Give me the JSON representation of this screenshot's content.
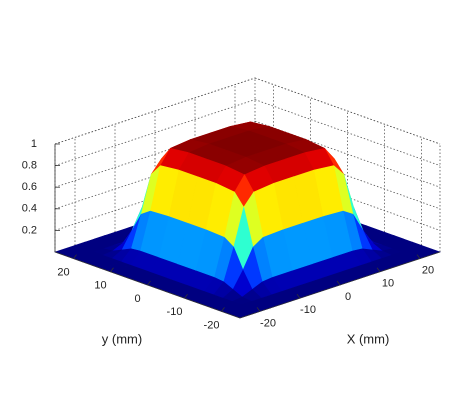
{
  "chart_data": {
    "type": "surface",
    "colormap": "jet",
    "xlabel": "X (mm)",
    "ylabel": "y (mm)",
    "x": [
      -25,
      -20,
      -17.5,
      -15,
      -12.5,
      -10,
      -5,
      0,
      5,
      10,
      12.5,
      15,
      17.5,
      20,
      25
    ],
    "y": [
      -25,
      -20,
      -17.5,
      -15,
      -12.5,
      -10,
      -5,
      0,
      5,
      10,
      12.5,
      15,
      17.5,
      20,
      25
    ],
    "z": [
      [
        0,
        0,
        0,
        0,
        0,
        0,
        0,
        0,
        0,
        0,
        0,
        0,
        0,
        0,
        0
      ],
      [
        0,
        0,
        0,
        0,
        0,
        0,
        0,
        0,
        0,
        0,
        0,
        0,
        0,
        0,
        0
      ],
      [
        0,
        0,
        0.01,
        0.05,
        0.09,
        0.1,
        0.1,
        0.1,
        0.1,
        0.1,
        0.09,
        0.05,
        0.01,
        0,
        0
      ],
      [
        0,
        0,
        0.05,
        0.2,
        0.38,
        0.44,
        0.45,
        0.45,
        0.45,
        0.44,
        0.38,
        0.2,
        0.05,
        0,
        0
      ],
      [
        0,
        0,
        0.09,
        0.38,
        0.72,
        0.83,
        0.85,
        0.85,
        0.85,
        0.83,
        0.72,
        0.38,
        0.09,
        0,
        0
      ],
      [
        0,
        0,
        0.1,
        0.44,
        0.83,
        0.96,
        0.98,
        0.98,
        0.98,
        0.96,
        0.83,
        0.44,
        0.1,
        0,
        0
      ],
      [
        0,
        0,
        0.1,
        0.45,
        0.85,
        0.98,
        1,
        1,
        1,
        0.98,
        0.85,
        0.45,
        0.1,
        0,
        0
      ],
      [
        0,
        0,
        0.1,
        0.45,
        0.85,
        0.98,
        1,
        1,
        1,
        0.98,
        0.85,
        0.45,
        0.1,
        0,
        0
      ],
      [
        0,
        0,
        0.1,
        0.45,
        0.85,
        0.98,
        1,
        1,
        1,
        0.98,
        0.85,
        0.45,
        0.1,
        0,
        0
      ],
      [
        0,
        0,
        0.1,
        0.44,
        0.83,
        0.96,
        0.98,
        0.98,
        0.98,
        0.96,
        0.83,
        0.44,
        0.1,
        0,
        0
      ],
      [
        0,
        0,
        0.09,
        0.38,
        0.72,
        0.83,
        0.85,
        0.85,
        0.85,
        0.83,
        0.72,
        0.38,
        0.09,
        0,
        0
      ],
      [
        0,
        0,
        0.05,
        0.2,
        0.38,
        0.44,
        0.45,
        0.45,
        0.45,
        0.44,
        0.38,
        0.2,
        0.05,
        0,
        0
      ],
      [
        0,
        0,
        0.01,
        0.05,
        0.09,
        0.1,
        0.1,
        0.1,
        0.1,
        0.1,
        0.09,
        0.05,
        0.01,
        0,
        0
      ],
      [
        0,
        0,
        0,
        0,
        0,
        0,
        0,
        0,
        0,
        0,
        0,
        0,
        0,
        0,
        0
      ],
      [
        0,
        0,
        0,
        0,
        0,
        0,
        0,
        0,
        0,
        0,
        0,
        0,
        0,
        0,
        0
      ]
    ],
    "xlim": [
      -25,
      25
    ],
    "ylim": [
      -25,
      25
    ],
    "zlim": [
      0,
      1
    ],
    "xticks": [
      -20,
      -10,
      0,
      10,
      20
    ],
    "yticks": [
      -20,
      -10,
      0,
      10,
      20
    ],
    "zticks": [
      0.2,
      0.4,
      0.6,
      0.8,
      1
    ],
    "grid": true
  }
}
